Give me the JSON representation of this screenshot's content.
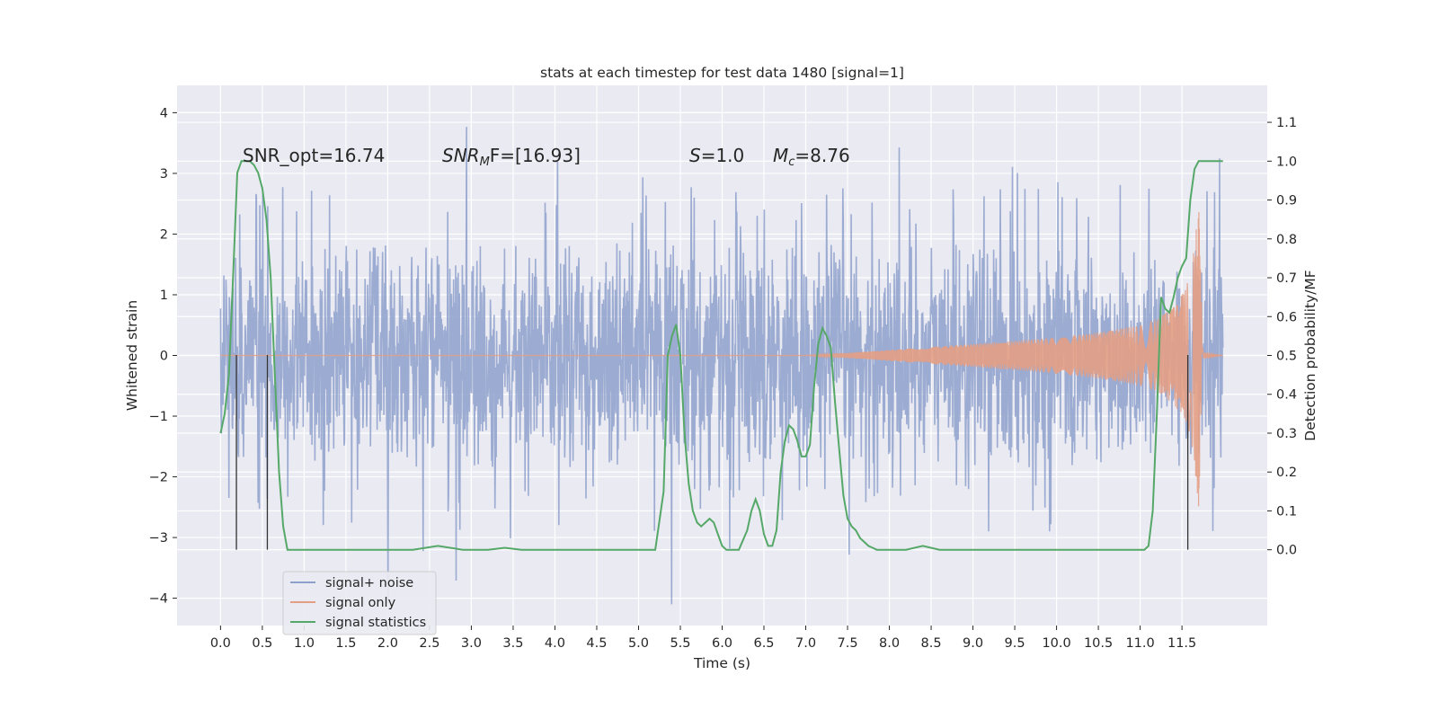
{
  "chart_data": {
    "type": "line",
    "title": "stats at each timestep for test data 1480 [signal=1]",
    "xlabel": "Time (s)",
    "ylabel": "Whitened strain",
    "y2label": "Detection probability/MF",
    "xlim": [
      -0.52,
      12.52
    ],
    "ylim": [
      -4.45,
      4.45
    ],
    "y2lim": [
      -0.195,
      1.195
    ],
    "xticks": [
      0.0,
      0.5,
      1.0,
      1.5,
      2.0,
      2.5,
      3.0,
      3.5,
      4.0,
      4.5,
      5.0,
      5.5,
      6.0,
      6.5,
      7.0,
      7.5,
      8.0,
      8.5,
      9.0,
      9.5,
      10.0,
      10.5,
      11.0,
      11.5
    ],
    "xtick_labels": [
      "0.0",
      "0.5",
      "1.0",
      "1.5",
      "2.0",
      "2.5",
      "3.0",
      "3.5",
      "4.0",
      "4.5",
      "5.0",
      "5.5",
      "6.0",
      "6.5",
      "7.0",
      "7.5",
      "8.0",
      "8.5",
      "9.0",
      "9.5",
      "10.0",
      "10.5",
      "11.0",
      "11.5"
    ],
    "yticks": [
      -4,
      -3,
      -2,
      -1,
      0,
      1,
      2,
      3,
      4
    ],
    "ytick_labels": [
      "−4",
      "−3",
      "−2",
      "−1",
      "0",
      "1",
      "2",
      "3",
      "4"
    ],
    "y2ticks": [
      0.0,
      0.1,
      0.2,
      0.3,
      0.4,
      0.5,
      0.6,
      0.7,
      0.8,
      0.9,
      1.0,
      1.1
    ],
    "y2tick_labels": [
      "0.0",
      "0.1",
      "0.2",
      "0.3",
      "0.4",
      "0.5",
      "0.6",
      "0.7",
      "0.8",
      "0.9",
      "1.0",
      "1.1"
    ],
    "grid": true,
    "legend_position": "lower-left",
    "annotations": [
      "SNR_opt=16.74",
      "SNR",
      "M",
      "F=[16.93]",
      "S",
      "=1.0",
      "M",
      "c",
      "=8.76"
    ],
    "vlines_x": [
      0.19,
      0.56,
      11.57
    ],
    "vline_range": [
      -3.2,
      0.0
    ],
    "series": [
      {
        "name": "signal+ noise",
        "color": "#8da0cb",
        "kind": "noise_band",
        "x_range": [
          0.0,
          11.99
        ],
        "dense_amplitude": 1.85,
        "max_peak": 3.95,
        "min_peak": -4.1
      },
      {
        "name": "signal only",
        "color": "#e39e84",
        "kind": "chirp_envelope",
        "x": [
          0.0,
          7.0,
          7.5,
          8.0,
          8.5,
          9.0,
          9.5,
          10.0,
          10.5,
          11.0,
          11.2,
          11.4,
          11.5,
          11.6,
          11.65,
          11.7,
          11.75,
          11.99
        ],
        "envelope": [
          0.0,
          0.0,
          0.04,
          0.09,
          0.14,
          0.19,
          0.24,
          0.3,
          0.38,
          0.5,
          0.6,
          0.8,
          1.0,
          1.3,
          1.8,
          2.5,
          0.05,
          0.0
        ]
      },
      {
        "name": "signal statistics",
        "color": "#55a868",
        "axis": "right",
        "x": [
          0.0,
          0.05,
          0.1,
          0.15,
          0.2,
          0.25,
          0.3,
          0.35,
          0.4,
          0.45,
          0.5,
          0.55,
          0.6,
          0.65,
          0.7,
          0.75,
          0.8,
          0.9,
          1.0,
          1.5,
          2.0,
          2.3,
          2.6,
          2.9,
          3.2,
          3.4,
          3.6,
          4.0,
          4.5,
          5.0,
          5.2,
          5.3,
          5.35,
          5.4,
          5.45,
          5.5,
          5.55,
          5.6,
          5.65,
          5.7,
          5.75,
          5.8,
          5.85,
          5.9,
          5.95,
          6.0,
          6.05,
          6.1,
          6.2,
          6.3,
          6.35,
          6.4,
          6.45,
          6.5,
          6.55,
          6.6,
          6.65,
          6.7,
          6.75,
          6.8,
          6.85,
          6.9,
          6.95,
          7.0,
          7.05,
          7.1,
          7.15,
          7.2,
          7.25,
          7.3,
          7.35,
          7.4,
          7.45,
          7.5,
          7.55,
          7.6,
          7.65,
          7.7,
          7.75,
          7.8,
          7.85,
          7.9,
          8.0,
          8.2,
          8.4,
          8.6,
          9.0,
          9.25,
          9.5,
          10.0,
          10.5,
          10.9,
          11.05,
          11.1,
          11.15,
          11.2,
          11.25,
          11.3,
          11.35,
          11.4,
          11.45,
          11.5,
          11.55,
          11.6,
          11.65,
          11.7,
          11.75,
          11.8,
          11.9,
          11.99
        ],
        "y": [
          0.3,
          0.35,
          0.45,
          0.7,
          0.97,
          1.0,
          1.0,
          1.0,
          0.99,
          0.97,
          0.93,
          0.85,
          0.7,
          0.45,
          0.2,
          0.06,
          0.0,
          0.0,
          0.0,
          0.0,
          0.0,
          0.0,
          0.01,
          0.0,
          0.0,
          0.005,
          0.0,
          0.0,
          0.0,
          0.0,
          0.0,
          0.15,
          0.5,
          0.55,
          0.58,
          0.5,
          0.3,
          0.17,
          0.1,
          0.07,
          0.06,
          0.07,
          0.08,
          0.07,
          0.04,
          0.01,
          0.0,
          0.0,
          0.0,
          0.05,
          0.1,
          0.13,
          0.1,
          0.04,
          0.01,
          0.01,
          0.05,
          0.2,
          0.28,
          0.32,
          0.31,
          0.28,
          0.24,
          0.24,
          0.27,
          0.42,
          0.53,
          0.57,
          0.55,
          0.52,
          0.38,
          0.26,
          0.14,
          0.08,
          0.06,
          0.05,
          0.03,
          0.02,
          0.01,
          0.005,
          0.0,
          0.0,
          0.0,
          0.0,
          0.01,
          0.0,
          0.0,
          0.0,
          0.0,
          0.0,
          0.0,
          0.0,
          0.0,
          0.01,
          0.1,
          0.35,
          0.65,
          0.62,
          0.61,
          0.65,
          0.7,
          0.73,
          0.75,
          0.9,
          0.98,
          1.0,
          1.0,
          1.0,
          1.0,
          1.0
        ]
      }
    ]
  }
}
